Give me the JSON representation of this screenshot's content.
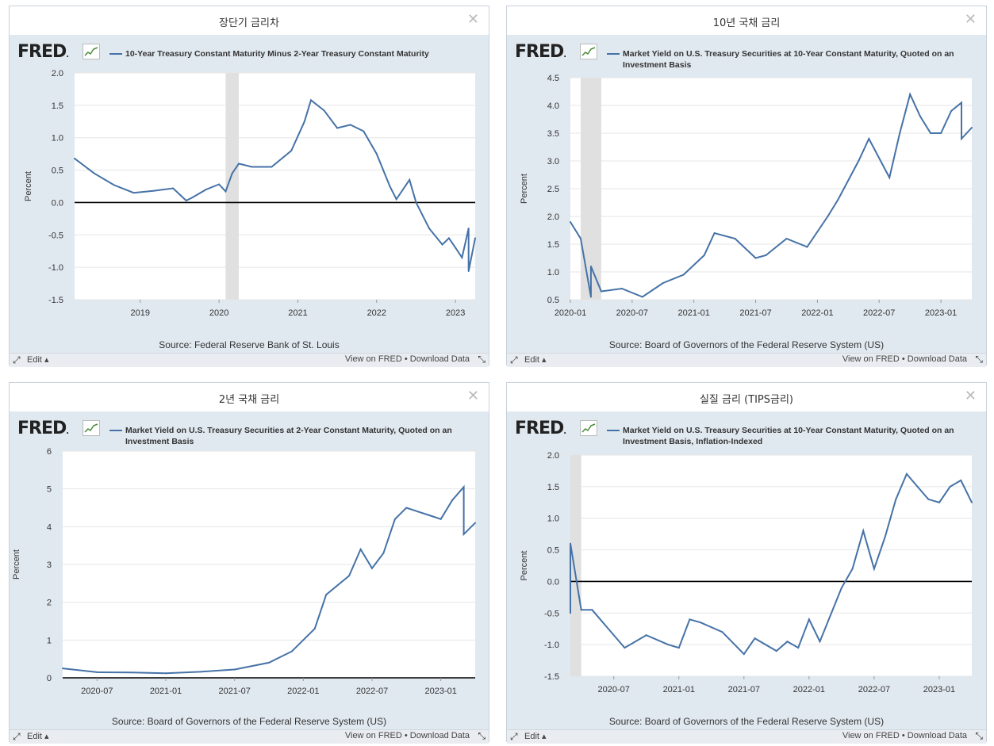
{
  "panels": [
    {
      "title": "장단기 금리차",
      "legend": "10-Year Treasury Constant Maturity Minus 2-Year Treasury Constant Maturity",
      "source": "Source: Federal Reserve Bank of St. Louis",
      "footer": {
        "edit": "Edit",
        "view": "View on FRED",
        "sep": "•",
        "download": "Download Data"
      },
      "chart_data": {
        "type": "line",
        "ylabel": "Percent",
        "ylim": [
          -1.5,
          2.0
        ],
        "yticks": [
          "2.0",
          "1.5",
          "1.0",
          "0.5",
          "0.0",
          "-0.5",
          "-1.0",
          "-1.5"
        ],
        "xrange": [
          "2018-03",
          "2023-04"
        ],
        "xticks": [
          {
            "x": "2019-01",
            "label": "2019"
          },
          {
            "x": "2020-01",
            "label": "2020"
          },
          {
            "x": "2021-01",
            "label": "2021"
          },
          {
            "x": "2022-01",
            "label": "2022"
          },
          {
            "x": "2023-01",
            "label": "2023"
          }
        ],
        "recession": [
          "2020-02",
          "2020-04"
        ],
        "zero_line": true,
        "x": [
          "2018-03",
          "2018-06",
          "2018-09",
          "2018-12",
          "2019-03",
          "2019-06",
          "2019-08",
          "2019-09",
          "2019-11",
          "2020-01",
          "2020-02",
          "2020-03",
          "2020-04",
          "2020-06",
          "2020-09",
          "2020-12",
          "2021-02",
          "2021-03",
          "2021-05",
          "2021-07",
          "2021-09",
          "2021-11",
          "2022-01",
          "2022-03",
          "2022-04",
          "2022-06",
          "2022-07",
          "2022-09",
          "2022-11",
          "2022-12",
          "2023-01",
          "2023-02",
          "2023-03",
          "2023-03",
          "2023-04"
        ],
        "y": [
          0.68,
          0.45,
          0.27,
          0.15,
          0.18,
          0.22,
          0.03,
          0.08,
          0.2,
          0.28,
          0.17,
          0.45,
          0.6,
          0.55,
          0.55,
          0.8,
          1.25,
          1.58,
          1.42,
          1.15,
          1.2,
          1.1,
          0.75,
          0.25,
          0.05,
          0.35,
          0.0,
          -0.4,
          -0.65,
          -0.55,
          -0.7,
          -0.85,
          -0.4,
          -1.06,
          -0.55
        ],
        "color": "#4572a7"
      }
    },
    {
      "title": "10년 국채 금리",
      "legend": "Market Yield on U.S. Treasury Securities at 10-Year Constant Maturity, Quoted on an Investment Basis",
      "source": "Source: Board of Governors of the Federal Reserve System (US)",
      "footer": {
        "edit": "Edit",
        "view": "View on FRED",
        "sep": "•",
        "download": "Download Data"
      },
      "chart_data": {
        "type": "line",
        "ylabel": "Percent",
        "ylim": [
          0.5,
          4.5
        ],
        "yticks": [
          "4.5",
          "4.0",
          "3.5",
          "3.0",
          "2.5",
          "2.0",
          "1.5",
          "1.0",
          "0.5"
        ],
        "xrange": [
          "2020-01",
          "2023-04"
        ],
        "xticks": [
          {
            "x": "2020-01",
            "label": "2020-01"
          },
          {
            "x": "2020-07",
            "label": "2020-07"
          },
          {
            "x": "2021-01",
            "label": "2021-01"
          },
          {
            "x": "2021-07",
            "label": "2021-07"
          },
          {
            "x": "2022-01",
            "label": "2022-01"
          },
          {
            "x": "2022-07",
            "label": "2022-07"
          },
          {
            "x": "2023-01",
            "label": "2023-01"
          }
        ],
        "recession": [
          "2020-02",
          "2020-04"
        ],
        "zero_line": false,
        "x": [
          "2020-01",
          "2020-02",
          "2020-03",
          "2020-03",
          "2020-04",
          "2020-06",
          "2020-08",
          "2020-10",
          "2020-12",
          "2021-02",
          "2021-03",
          "2021-05",
          "2021-07",
          "2021-08",
          "2021-10",
          "2021-12",
          "2022-02",
          "2022-03",
          "2022-05",
          "2022-06",
          "2022-08",
          "2022-09",
          "2022-10",
          "2022-11",
          "2022-12",
          "2023-01",
          "2023-02",
          "2023-03",
          "2023-03",
          "2023-04"
        ],
        "y": [
          1.9,
          1.6,
          0.55,
          1.1,
          0.65,
          0.7,
          0.55,
          0.8,
          0.95,
          1.3,
          1.7,
          1.6,
          1.25,
          1.3,
          1.6,
          1.45,
          2.0,
          2.3,
          3.0,
          3.4,
          2.7,
          3.5,
          4.2,
          3.8,
          3.5,
          3.5,
          3.9,
          4.05,
          3.4,
          3.6
        ],
        "color": "#4572a7"
      }
    },
    {
      "title": "2년 국채 금리",
      "legend": "Market Yield on U.S. Treasury Securities at 2-Year Constant Maturity, Quoted on an Investment Basis",
      "source": "Source: Board of Governors of the Federal Reserve System (US)",
      "footer": {
        "edit": "Edit",
        "view": "View on FRED",
        "sep": "•",
        "download": "Download Data"
      },
      "chart_data": {
        "type": "line",
        "ylabel": "Percent",
        "ylim": [
          0,
          6
        ],
        "yticks": [
          "6",
          "5",
          "4",
          "3",
          "2",
          "1",
          "0"
        ],
        "xrange": [
          "2020-04",
          "2023-04"
        ],
        "xticks": [
          {
            "x": "2020-07",
            "label": "2020-07"
          },
          {
            "x": "2021-01",
            "label": "2021-01"
          },
          {
            "x": "2021-07",
            "label": "2021-07"
          },
          {
            "x": "2022-01",
            "label": "2022-01"
          },
          {
            "x": "2022-07",
            "label": "2022-07"
          },
          {
            "x": "2023-01",
            "label": "2023-01"
          }
        ],
        "recession": null,
        "zero_line": true,
        "x": [
          "2020-04",
          "2020-07",
          "2020-10",
          "2021-01",
          "2021-04",
          "2021-07",
          "2021-10",
          "2021-12",
          "2022-02",
          "2022-03",
          "2022-05",
          "2022-06",
          "2022-07",
          "2022-08",
          "2022-09",
          "2022-10",
          "2022-11",
          "2022-12",
          "2023-01",
          "2023-02",
          "2023-03",
          "2023-03",
          "2023-04"
        ],
        "y": [
          0.25,
          0.15,
          0.14,
          0.12,
          0.16,
          0.22,
          0.4,
          0.7,
          1.3,
          2.2,
          2.7,
          3.4,
          2.9,
          3.3,
          4.2,
          4.5,
          4.4,
          4.3,
          4.2,
          4.7,
          5.05,
          3.8,
          4.1
        ],
        "color": "#4572a7"
      }
    },
    {
      "title": "실질 금리 (TIPS금리)",
      "legend": "Market Yield on U.S. Treasury Securities at 10-Year Constant Maturity, Quoted on an Investment Basis, Inflation-Indexed",
      "source": "Source: Board of Governors of the Federal Reserve System (US)",
      "footer": {
        "edit": "Edit",
        "view": "View on FRED",
        "sep": "•",
        "download": "Download Data"
      },
      "chart_data": {
        "type": "line",
        "ylabel": "Percent",
        "ylim": [
          -1.5,
          2.0
        ],
        "yticks": [
          "2.0",
          "1.5",
          "1.0",
          "0.5",
          "0.0",
          "-0.5",
          "-1.0",
          "-1.5"
        ],
        "xrange": [
          "2020-03",
          "2023-04"
        ],
        "xticks": [
          {
            "x": "2020-07",
            "label": "2020-07"
          },
          {
            "x": "2021-01",
            "label": "2021-01"
          },
          {
            "x": "2021-07",
            "label": "2021-07"
          },
          {
            "x": "2022-01",
            "label": "2022-01"
          },
          {
            "x": "2022-07",
            "label": "2022-07"
          },
          {
            "x": "2023-01",
            "label": "2023-01"
          }
        ],
        "recession": [
          "2020-03",
          "2020-04"
        ],
        "zero_line": true,
        "x": [
          "2020-03",
          "2020-03",
          "2020-04",
          "2020-05",
          "2020-08",
          "2020-10",
          "2020-12",
          "2021-01",
          "2021-02",
          "2021-03",
          "2021-05",
          "2021-07",
          "2021-08",
          "2021-10",
          "2021-11",
          "2021-12",
          "2022-01",
          "2022-02",
          "2022-04",
          "2022-05",
          "2022-06",
          "2022-07",
          "2022-08",
          "2022-09",
          "2022-10",
          "2022-11",
          "2022-12",
          "2023-01",
          "2023-02",
          "2023-03",
          "2023-04"
        ],
        "y": [
          -0.5,
          0.6,
          -0.45,
          -0.45,
          -1.05,
          -0.85,
          -1.0,
          -1.05,
          -0.6,
          -0.65,
          -0.8,
          -1.15,
          -0.9,
          -1.1,
          -0.95,
          -1.05,
          -0.6,
          -0.95,
          -0.1,
          0.2,
          0.8,
          0.2,
          0.7,
          1.3,
          1.7,
          1.5,
          1.3,
          1.25,
          1.5,
          1.6,
          1.25
        ],
        "color": "#4572a7"
      }
    }
  ]
}
